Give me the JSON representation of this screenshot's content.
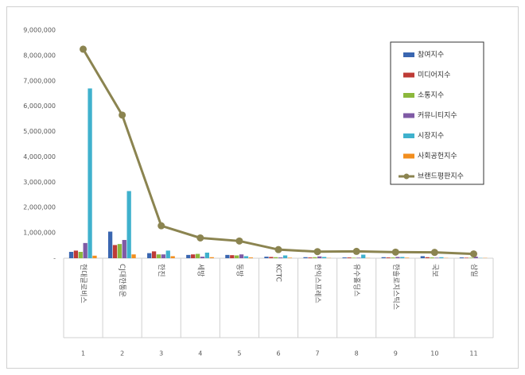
{
  "chart_data": {
    "type": "bar",
    "categories": [
      "현대글로비스",
      "CJ대한통운",
      "한진",
      "세방",
      "동방",
      "KCTC",
      "한익스프레스",
      "유수홀딩스",
      "한솔로지스틱스",
      "국보",
      "삼일"
    ],
    "ranks": [
      1,
      2,
      3,
      4,
      5,
      6,
      7,
      8,
      9,
      10,
      11
    ],
    "series": [
      {
        "name": "참여지수",
        "color": "#3a66b0",
        "values": [
          250000,
          1050000,
          200000,
          130000,
          130000,
          60000,
          40000,
          30000,
          40000,
          80000,
          30000
        ]
      },
      {
        "name": "미디어지수",
        "color": "#be3b36",
        "values": [
          300000,
          520000,
          270000,
          150000,
          120000,
          50000,
          30000,
          30000,
          30000,
          40000,
          20000
        ]
      },
      {
        "name": "소통지수",
        "color": "#8cb83c",
        "values": [
          250000,
          560000,
          150000,
          170000,
          110000,
          40000,
          40000,
          20000,
          30000,
          30000,
          20000
        ]
      },
      {
        "name": "커뮤니티지수",
        "color": "#7f5aa5",
        "values": [
          600000,
          720000,
          150000,
          60000,
          150000,
          30000,
          70000,
          20000,
          50000,
          20000,
          60000
        ]
      },
      {
        "name": "시장지수",
        "color": "#3fb1cd",
        "values": [
          6700000,
          2650000,
          300000,
          220000,
          80000,
          110000,
          50000,
          140000,
          50000,
          40000,
          10000
        ]
      },
      {
        "name": "사회공헌지수",
        "color": "#f28e1e",
        "values": [
          100000,
          150000,
          80000,
          40000,
          30000,
          20000,
          10000,
          10000,
          20000,
          10000,
          10000
        ]
      },
      {
        "name": "브랜드평판지수",
        "color": "#8b8450",
        "type": "line",
        "values": [
          8250000,
          5650000,
          1280000,
          800000,
          680000,
          340000,
          260000,
          270000,
          240000,
          230000,
          170000
        ]
      }
    ],
    "ylim": [
      0,
      9000000
    ],
    "yticks": [
      {
        "value": 0,
        "label": "-"
      },
      {
        "value": 1000000,
        "label": "1,000,000"
      },
      {
        "value": 2000000,
        "label": "2,000,000"
      },
      {
        "value": 3000000,
        "label": "3,000,000"
      },
      {
        "value": 4000000,
        "label": "4,000,000"
      },
      {
        "value": 5000000,
        "label": "5,000,000"
      },
      {
        "value": 6000000,
        "label": "6,000,000"
      },
      {
        "value": 7000000,
        "label": "7,000,000"
      },
      {
        "value": 8000000,
        "label": "8,000,000"
      },
      {
        "value": 9000000,
        "label": "9,000,000"
      }
    ],
    "legend_position": "upper right"
  }
}
